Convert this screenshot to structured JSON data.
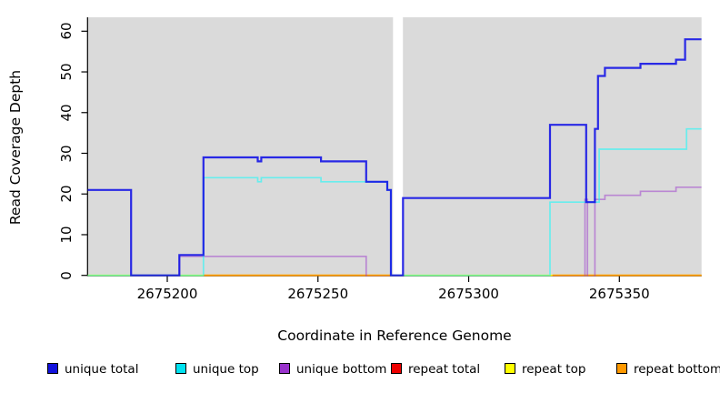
{
  "chart_data": {
    "type": "line",
    "subtype": "step-after",
    "title": "",
    "xlabel": "Coordinate in Reference Genome",
    "ylabel": "Read Coverage Depth",
    "xlim": [
      2675173.5,
      2675377.3
    ],
    "ylim": [
      0,
      63.5
    ],
    "x_ticks": [
      2675200,
      2675250,
      2675300,
      2675350
    ],
    "y_ticks": [
      0,
      10,
      20,
      30,
      40,
      50,
      60
    ],
    "plot_background": "#dadada",
    "gap_band_x": [
      2675274.9,
      2675278.2
    ],
    "grid": false,
    "legend_position": "bottom",
    "series": [
      {
        "name": "unique total",
        "color": "#0f0fe6",
        "opacity": 0.88,
        "width": 2.2,
        "points": [
          [
            2675173.5,
            21
          ],
          [
            2675188,
            0
          ],
          [
            2675204,
            5
          ],
          [
            2675212,
            29
          ],
          [
            2675230,
            28
          ],
          [
            2675231.2,
            29
          ],
          [
            2675251,
            28
          ],
          [
            2675266,
            23
          ],
          [
            2675273,
            21
          ],
          [
            2675274.2,
            0
          ],
          [
            2675278.2,
            19
          ],
          [
            2675327,
            37
          ],
          [
            2675339,
            18
          ],
          [
            2675341.9,
            36
          ],
          [
            2675342.9,
            49
          ],
          [
            2675345.2,
            51
          ],
          [
            2675357,
            52
          ],
          [
            2675368.8,
            53
          ],
          [
            2675371.8,
            58
          ]
        ],
        "end": 2675377.3
      },
      {
        "name": "unique top",
        "color": "#00ffff",
        "opacity": 0.52,
        "width": 1.7,
        "points": [
          [
            2675173.5,
            0
          ],
          [
            2675212,
            24
          ],
          [
            2675230,
            23
          ],
          [
            2675231.2,
            24
          ],
          [
            2675251,
            23
          ],
          [
            2675273,
            21
          ],
          [
            2675274.2,
            0
          ],
          [
            2675327,
            18
          ],
          [
            2675343.3,
            31
          ],
          [
            2675372.3,
            36
          ]
        ],
        "end": 2675377.3
      },
      {
        "name": "unique bottom",
        "color": "#9933cc",
        "opacity": 0.5,
        "width": 1.7,
        "points": [
          [
            2675173.5,
            0
          ],
          [
            2675204,
            5
          ],
          [
            2675266,
            0
          ],
          [
            2675338.6,
            19
          ],
          [
            2675339.4,
            0
          ],
          [
            2675341.9,
            19
          ],
          [
            2675345.2,
            20
          ],
          [
            2675357,
            21
          ],
          [
            2675368.8,
            22
          ]
        ],
        "end": 2675377.3
      },
      {
        "name": "repeat total",
        "color": "#ee0000",
        "opacity": 1,
        "width": 1.4,
        "points": [
          [
            2675173.5,
            0
          ]
        ],
        "end": 2675377.3
      },
      {
        "name": "repeat top",
        "color": "#ffff00",
        "opacity": 1,
        "width": 1.6,
        "points": [
          [
            2675173.5,
            0
          ]
        ],
        "end": 2675377.3
      },
      {
        "name": "repeat bottom",
        "color": "#ff9900",
        "opacity": 1,
        "width": 1.8,
        "points": [
          [
            2675212,
            0
          ]
        ],
        "end": 2675377.3,
        "segments": [
          [
            2675212,
            2675274.2
          ],
          [
            2675327.8,
            2675377.3
          ]
        ]
      }
    ]
  },
  "y_axis": {
    "label": "Read Coverage Depth",
    "ticks": [
      "0",
      "10",
      "20",
      "30",
      "40",
      "50",
      "60"
    ]
  },
  "x_axis": {
    "label": "Coordinate in Reference Genome",
    "ticks": [
      "2675200",
      "2675250",
      "2675300",
      "2675350"
    ]
  },
  "legend": {
    "items": [
      {
        "label": "unique total",
        "color": "#1212dd"
      },
      {
        "label": "unique top",
        "color": "#00e2f0"
      },
      {
        "label": "unique bottom",
        "color": "#9933cc"
      },
      {
        "label": "repeat total",
        "color": "#ee0000"
      },
      {
        "label": "repeat top",
        "color": "#ffff00"
      },
      {
        "label": "repeat bottom",
        "color": "#ff9900"
      }
    ]
  }
}
